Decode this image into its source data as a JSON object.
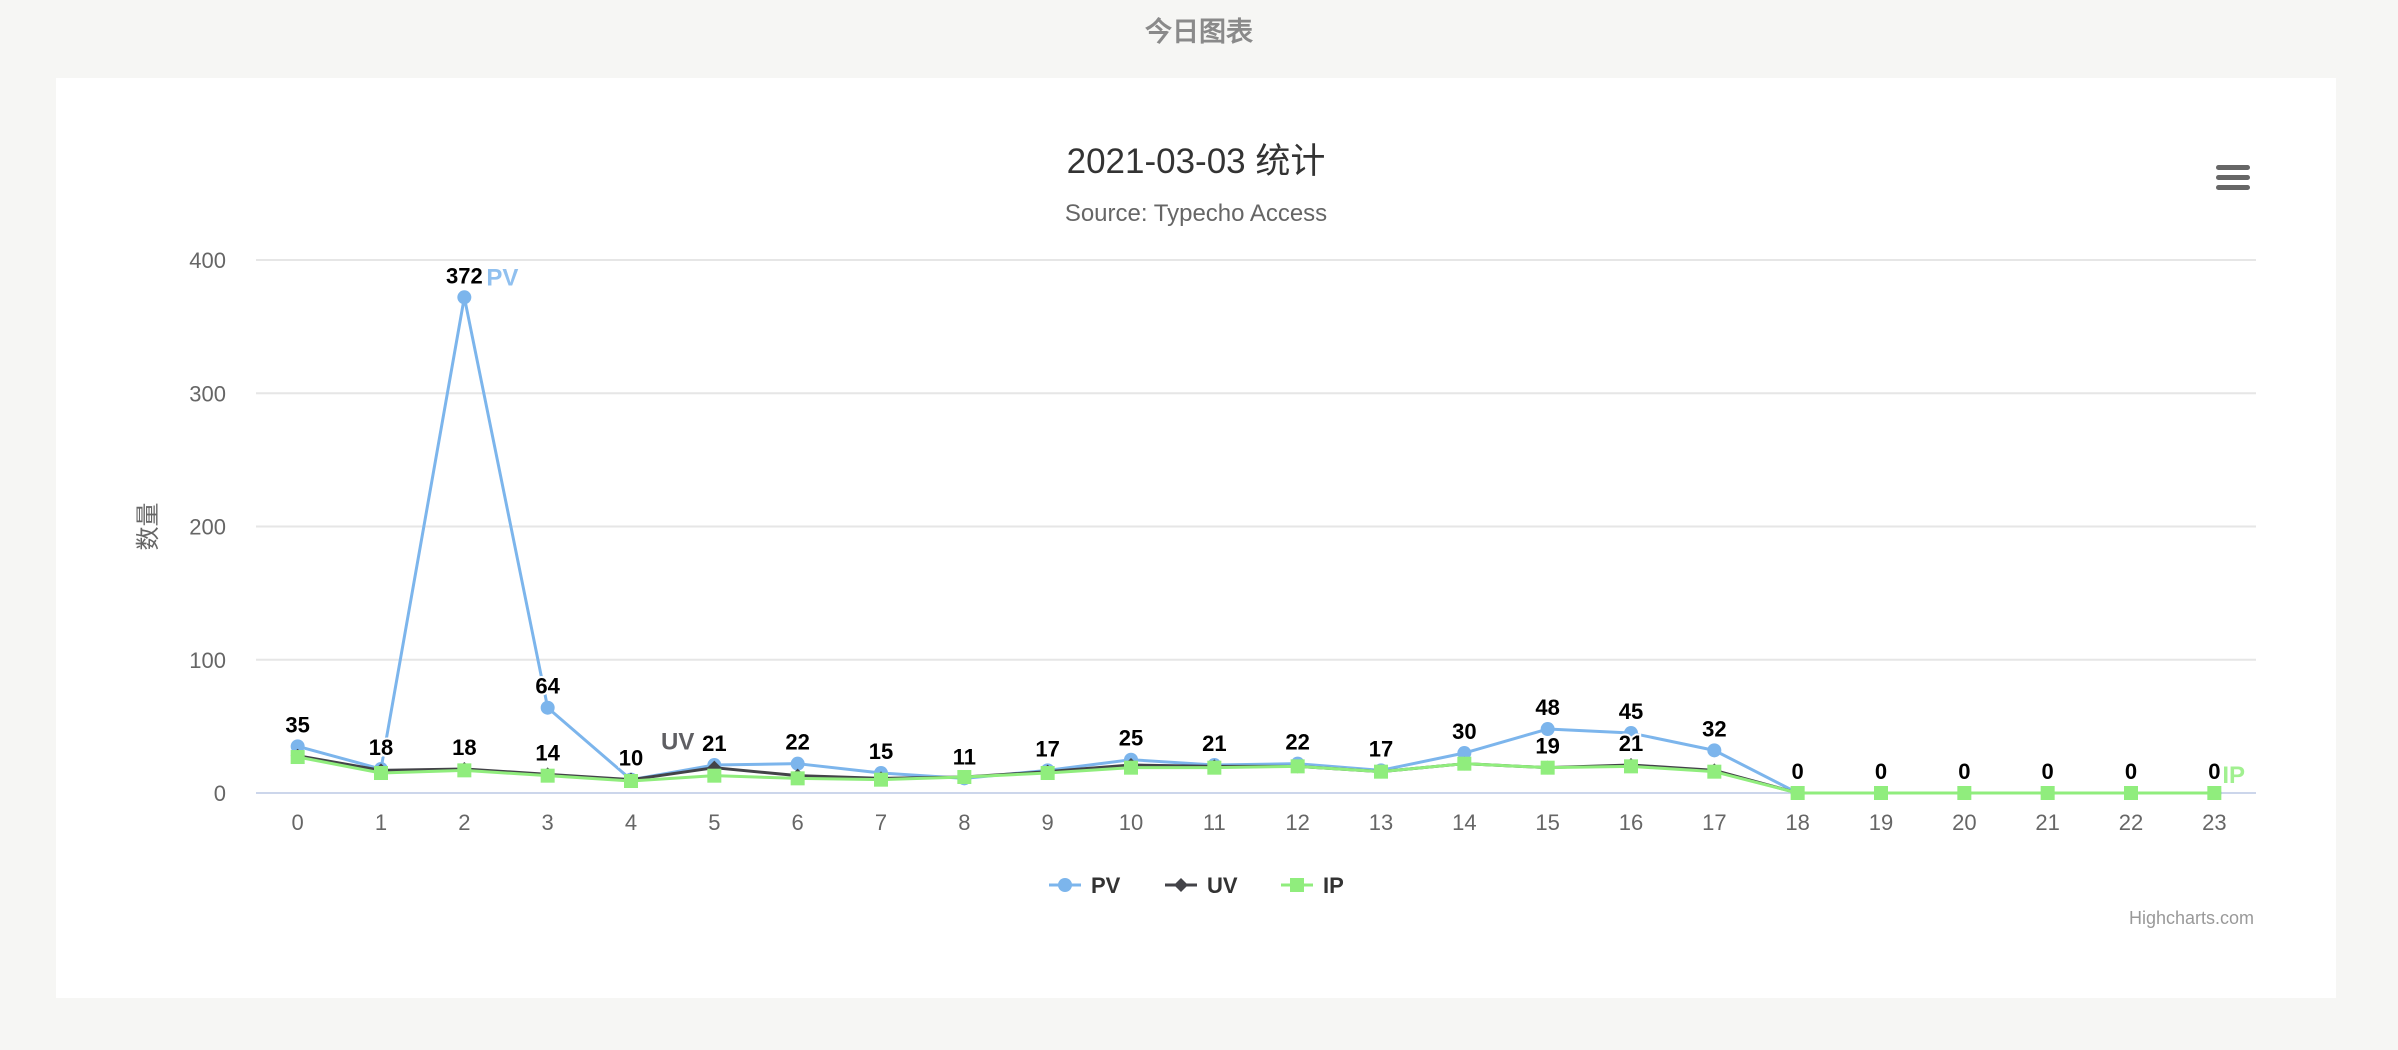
{
  "page": {
    "heading": "今日图表"
  },
  "chart_menu_icon": "hamburger-menu-icon",
  "chart_data": {
    "type": "line",
    "title": "2021-03-03 统计",
    "subtitle": "Source: Typecho Access",
    "ylabel": "数量",
    "xlabel": "",
    "ylim": [
      0,
      400
    ],
    "yticks": [
      "0",
      "100",
      "200",
      "300",
      "400"
    ],
    "grid": true,
    "legend_position": "bottom-center",
    "categories": [
      "0",
      "1",
      "2",
      "3",
      "4",
      "5",
      "6",
      "7",
      "8",
      "9",
      "10",
      "11",
      "12",
      "13",
      "14",
      "15",
      "16",
      "17",
      "18",
      "19",
      "20",
      "21",
      "22",
      "23"
    ],
    "series": [
      {
        "name": "PV",
        "color": "#7cb5ec",
        "marker": "circle",
        "end_label": "PV",
        "values": [
          35,
          18,
          372,
          64,
          10,
          21,
          22,
          15,
          11,
          17,
          25,
          21,
          22,
          17,
          30,
          48,
          45,
          32,
          0,
          0,
          0,
          0,
          0,
          0
        ],
        "data_labels": [
          35,
          18,
          372,
          64,
          10,
          21,
          22,
          15,
          11,
          17,
          25,
          21,
          22,
          17,
          30,
          48,
          45,
          32,
          0,
          0,
          0,
          0,
          0,
          0
        ]
      },
      {
        "name": "UV",
        "color": "#434348",
        "marker": "diamond",
        "end_label": "UV",
        "values": [
          28,
          17,
          18,
          14,
          10,
          19,
          13,
          11,
          12,
          16,
          21,
          20,
          20,
          16,
          22,
          19,
          21,
          17,
          0,
          0,
          0,
          0,
          0,
          0
        ],
        "data_labels": [
          null,
          null,
          18,
          14,
          null,
          null,
          null,
          null,
          null,
          null,
          null,
          null,
          null,
          null,
          null,
          19,
          21,
          null,
          null,
          null,
          null,
          null,
          null,
          null
        ]
      },
      {
        "name": "IP",
        "color": "#90ed7d",
        "marker": "square",
        "end_label": "IP",
        "values": [
          27,
          15,
          17,
          13,
          9,
          13,
          11,
          10,
          12,
          15,
          19,
          19,
          20,
          16,
          22,
          19,
          20,
          16,
          0,
          0,
          0,
          0,
          0,
          0
        ],
        "data_labels": []
      }
    ],
    "credits": "Highcharts.com"
  }
}
